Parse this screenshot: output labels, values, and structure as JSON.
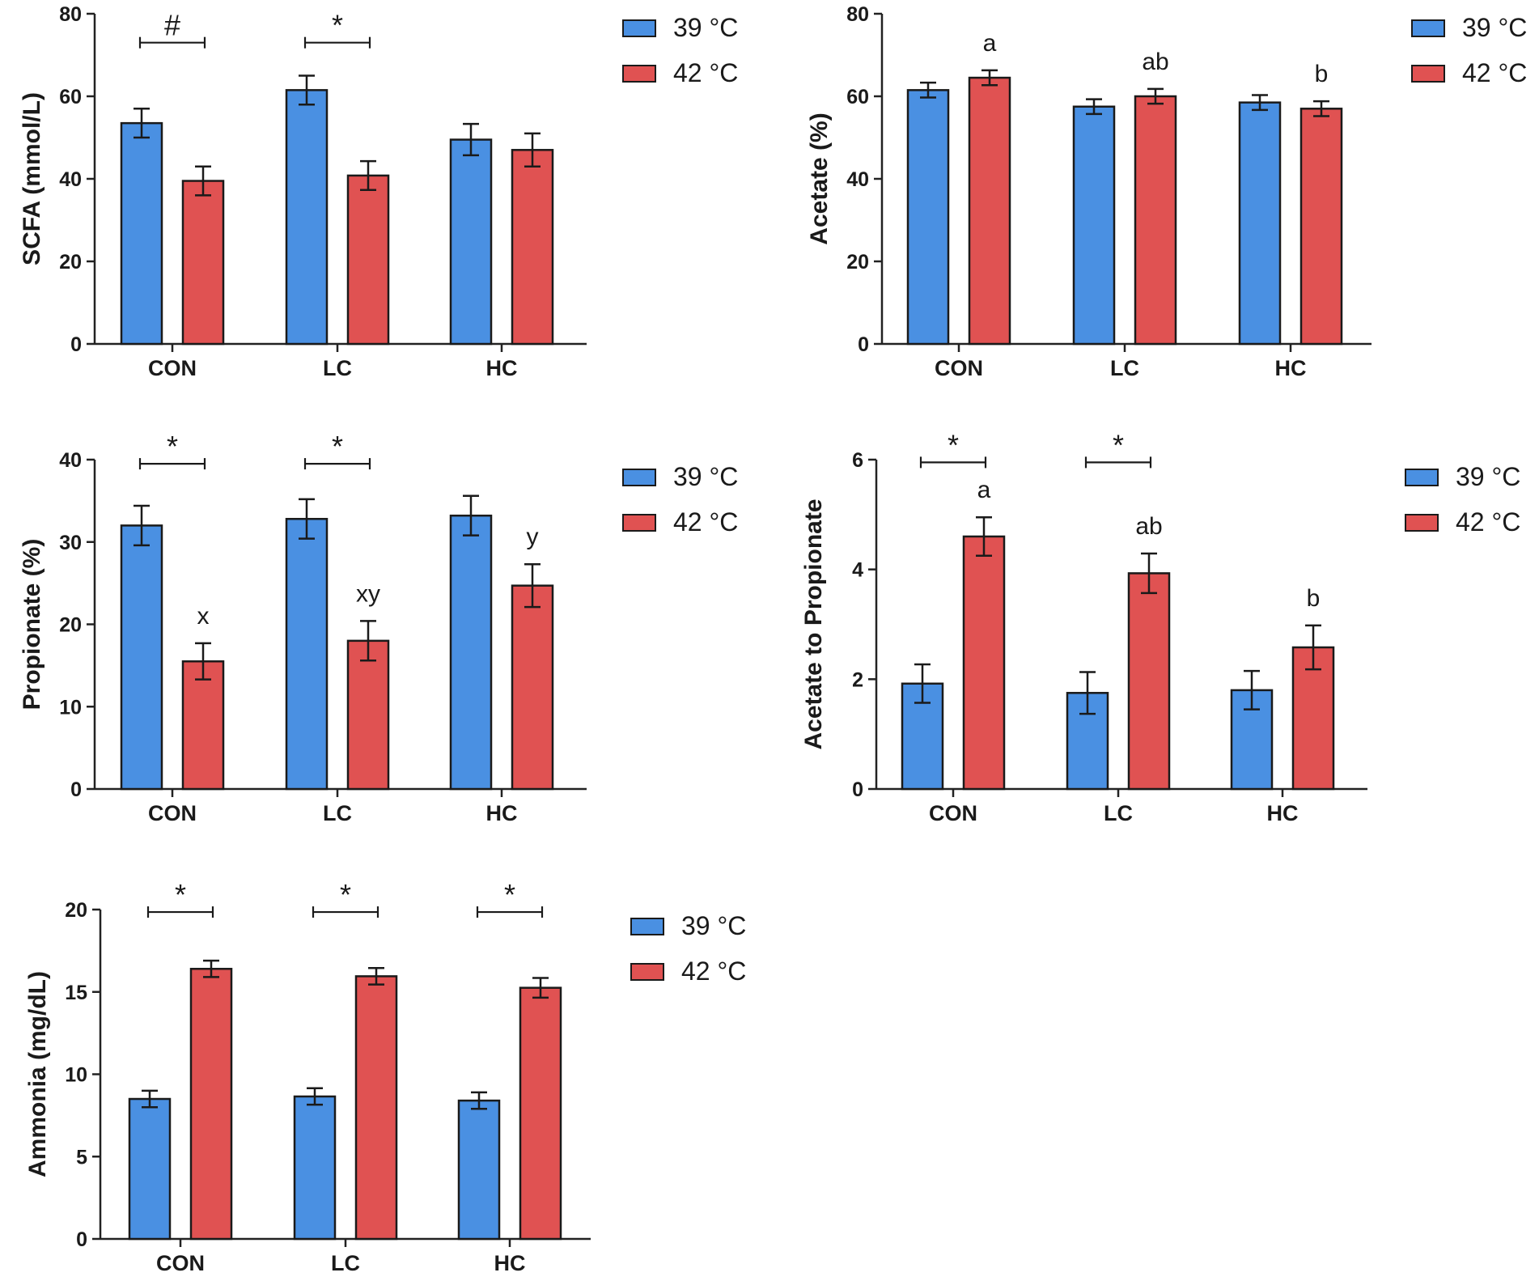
{
  "chart_data": [
    {
      "type": "bar",
      "id": "scfa",
      "ylabel": "SCFA (mmol/L)",
      "categories": [
        "CON",
        "LC",
        "HC"
      ],
      "ylim": [
        0,
        80
      ],
      "yticks": [
        "0",
        "20",
        "40",
        "60",
        "80"
      ],
      "series": [
        {
          "name": "39 °C",
          "color": "#4a90e2",
          "values": [
            53.5,
            61.5,
            49.5
          ],
          "errors": [
            3.5,
            3.5,
            3.8
          ]
        },
        {
          "name": "42 °C",
          "color": "#e05252",
          "values": [
            39.5,
            40.8,
            47.0
          ],
          "errors": [
            3.5,
            3.5,
            4.0
          ]
        }
      ],
      "annotations": [],
      "significance": [
        {
          "category": "CON",
          "label": "#",
          "y": 73
        },
        {
          "category": "LC",
          "label": "*",
          "y": 73
        }
      ]
    },
    {
      "type": "bar",
      "id": "acetate",
      "ylabel": "Acetate (%)",
      "categories": [
        "CON",
        "LC",
        "HC"
      ],
      "ylim": [
        0,
        80
      ],
      "yticks": [
        "0",
        "20",
        "40",
        "60",
        "80"
      ],
      "series": [
        {
          "name": "39 °C",
          "color": "#4a90e2",
          "values": [
            61.5,
            57.5,
            58.5
          ],
          "errors": [
            1.8,
            1.8,
            1.8
          ]
        },
        {
          "name": "42 °C",
          "color": "#e05252",
          "values": [
            64.5,
            60.0,
            57.0
          ],
          "errors": [
            1.8,
            1.8,
            1.8
          ]
        }
      ],
      "annotations": [
        {
          "category": "CON",
          "series": 1,
          "label": "a"
        },
        {
          "category": "LC",
          "series": 1,
          "label": "ab"
        },
        {
          "category": "HC",
          "series": 1,
          "label": "b"
        }
      ],
      "significance": []
    },
    {
      "type": "bar",
      "id": "propionate",
      "ylabel": "Propionate (%)",
      "categories": [
        "CON",
        "LC",
        "HC"
      ],
      "ylim": [
        0,
        40
      ],
      "yticks": [
        "0",
        "10",
        "20",
        "30",
        "40"
      ],
      "series": [
        {
          "name": "39 °C",
          "color": "#4a90e2",
          "values": [
            32.0,
            32.8,
            33.2
          ],
          "errors": [
            2.4,
            2.4,
            2.4
          ]
        },
        {
          "name": "42 °C",
          "color": "#e05252",
          "values": [
            15.5,
            18.0,
            24.7
          ],
          "errors": [
            2.2,
            2.4,
            2.6
          ]
        }
      ],
      "annotations": [
        {
          "category": "CON",
          "series": 1,
          "label": "x"
        },
        {
          "category": "LC",
          "series": 1,
          "label": "xy"
        },
        {
          "category": "HC",
          "series": 1,
          "label": "y"
        }
      ],
      "significance": [
        {
          "category": "CON",
          "label": "*",
          "y": 39.5
        },
        {
          "category": "LC",
          "label": "*",
          "y": 39.5
        }
      ]
    },
    {
      "type": "bar",
      "id": "ratio",
      "ylabel": "Acetate to Propionate",
      "categories": [
        "CON",
        "LC",
        "HC"
      ],
      "ylim": [
        0,
        6
      ],
      "yticks": [
        "0",
        "2",
        "4",
        "6"
      ],
      "series": [
        {
          "name": "39 °C",
          "color": "#4a90e2",
          "values": [
            1.92,
            1.75,
            1.8
          ],
          "errors": [
            0.35,
            0.38,
            0.35
          ]
        },
        {
          "name": "42 °C",
          "color": "#e05252",
          "values": [
            4.6,
            3.93,
            2.58
          ],
          "errors": [
            0.35,
            0.36,
            0.4
          ]
        }
      ],
      "annotations": [
        {
          "category": "CON",
          "series": 1,
          "label": "a"
        },
        {
          "category": "LC",
          "series": 1,
          "label": "ab"
        },
        {
          "category": "HC",
          "series": 1,
          "label": "b"
        }
      ],
      "significance": [
        {
          "category": "CON",
          "label": "*",
          "y": 5.95
        },
        {
          "category": "LC",
          "label": "*",
          "y": 5.95
        }
      ]
    },
    {
      "type": "bar",
      "id": "ammonia",
      "ylabel": "Ammonia (mg/dL)",
      "categories": [
        "CON",
        "LC",
        "HC"
      ],
      "ylim": [
        0,
        20
      ],
      "yticks": [
        "0",
        "5",
        "10",
        "15",
        "20"
      ],
      "series": [
        {
          "name": "39 °C",
          "color": "#4a90e2",
          "values": [
            8.5,
            8.65,
            8.4
          ],
          "errors": [
            0.5,
            0.5,
            0.5
          ]
        },
        {
          "name": "42 °C",
          "color": "#e05252",
          "values": [
            16.4,
            15.95,
            15.25
          ],
          "errors": [
            0.5,
            0.5,
            0.6
          ]
        }
      ],
      "annotations": [],
      "significance": [
        {
          "category": "CON",
          "label": "*",
          "y": 19.85
        },
        {
          "category": "LC",
          "label": "*",
          "y": 19.85
        },
        {
          "category": "HC",
          "label": "*",
          "y": 19.85
        }
      ]
    }
  ]
}
